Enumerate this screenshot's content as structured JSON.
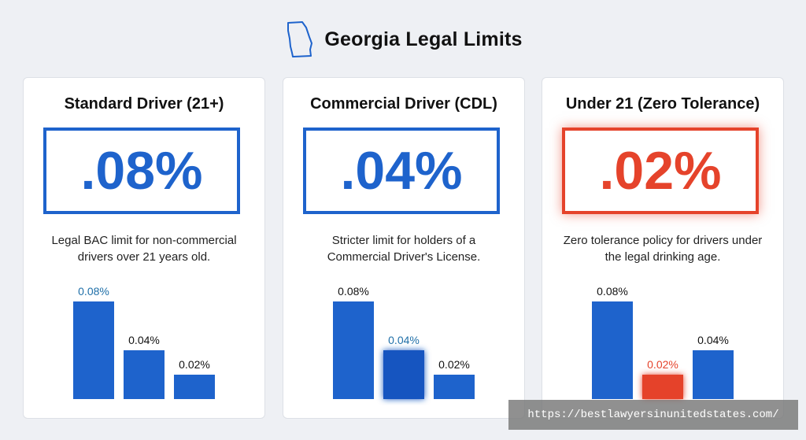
{
  "header": {
    "title": "Georgia Legal Limits",
    "icon": "georgia-state-outline-icon"
  },
  "colors": {
    "blue": "#1e63cc",
    "red": "#e5432b",
    "highlight_label": "#1f6fa8"
  },
  "cards": [
    {
      "title": "Standard Driver (21+)",
      "value": ".08%",
      "style": "blue",
      "description": "Legal BAC limit for non-commercial drivers over 21 years old."
    },
    {
      "title": "Commercial Driver (CDL)",
      "value": ".04%",
      "style": "blue",
      "description": "Stricter limit for holders of a Commercial Driver's License."
    },
    {
      "title": "Under 21 (Zero Tolerance)",
      "value": ".02%",
      "style": "red",
      "description": "Zero tolerance policy for drivers under the legal drinking age."
    }
  ],
  "chart_data": [
    {
      "type": "bar",
      "values": [
        0.08,
        0.04,
        0.02
      ],
      "labels": [
        "0.08%",
        "0.04%",
        "0.02%"
      ],
      "highlight": 0,
      "highlight_color": "blue",
      "ylim": [
        0,
        0.08
      ]
    },
    {
      "type": "bar",
      "values": [
        0.08,
        0.04,
        0.02
      ],
      "labels": [
        "0.08%",
        "0.04%",
        "0.02%"
      ],
      "highlight": 1,
      "highlight_color": "blue",
      "ylim": [
        0,
        0.08
      ]
    },
    {
      "type": "bar",
      "values": [
        0.08,
        0.02,
        0.04
      ],
      "labels": [
        "0.08%",
        "0.02%",
        "0.04%"
      ],
      "highlight": 1,
      "highlight_color": "red",
      "ylim": [
        0,
        0.08
      ]
    }
  ],
  "watermark": "https://bestlawyersinunitedstates.com/"
}
